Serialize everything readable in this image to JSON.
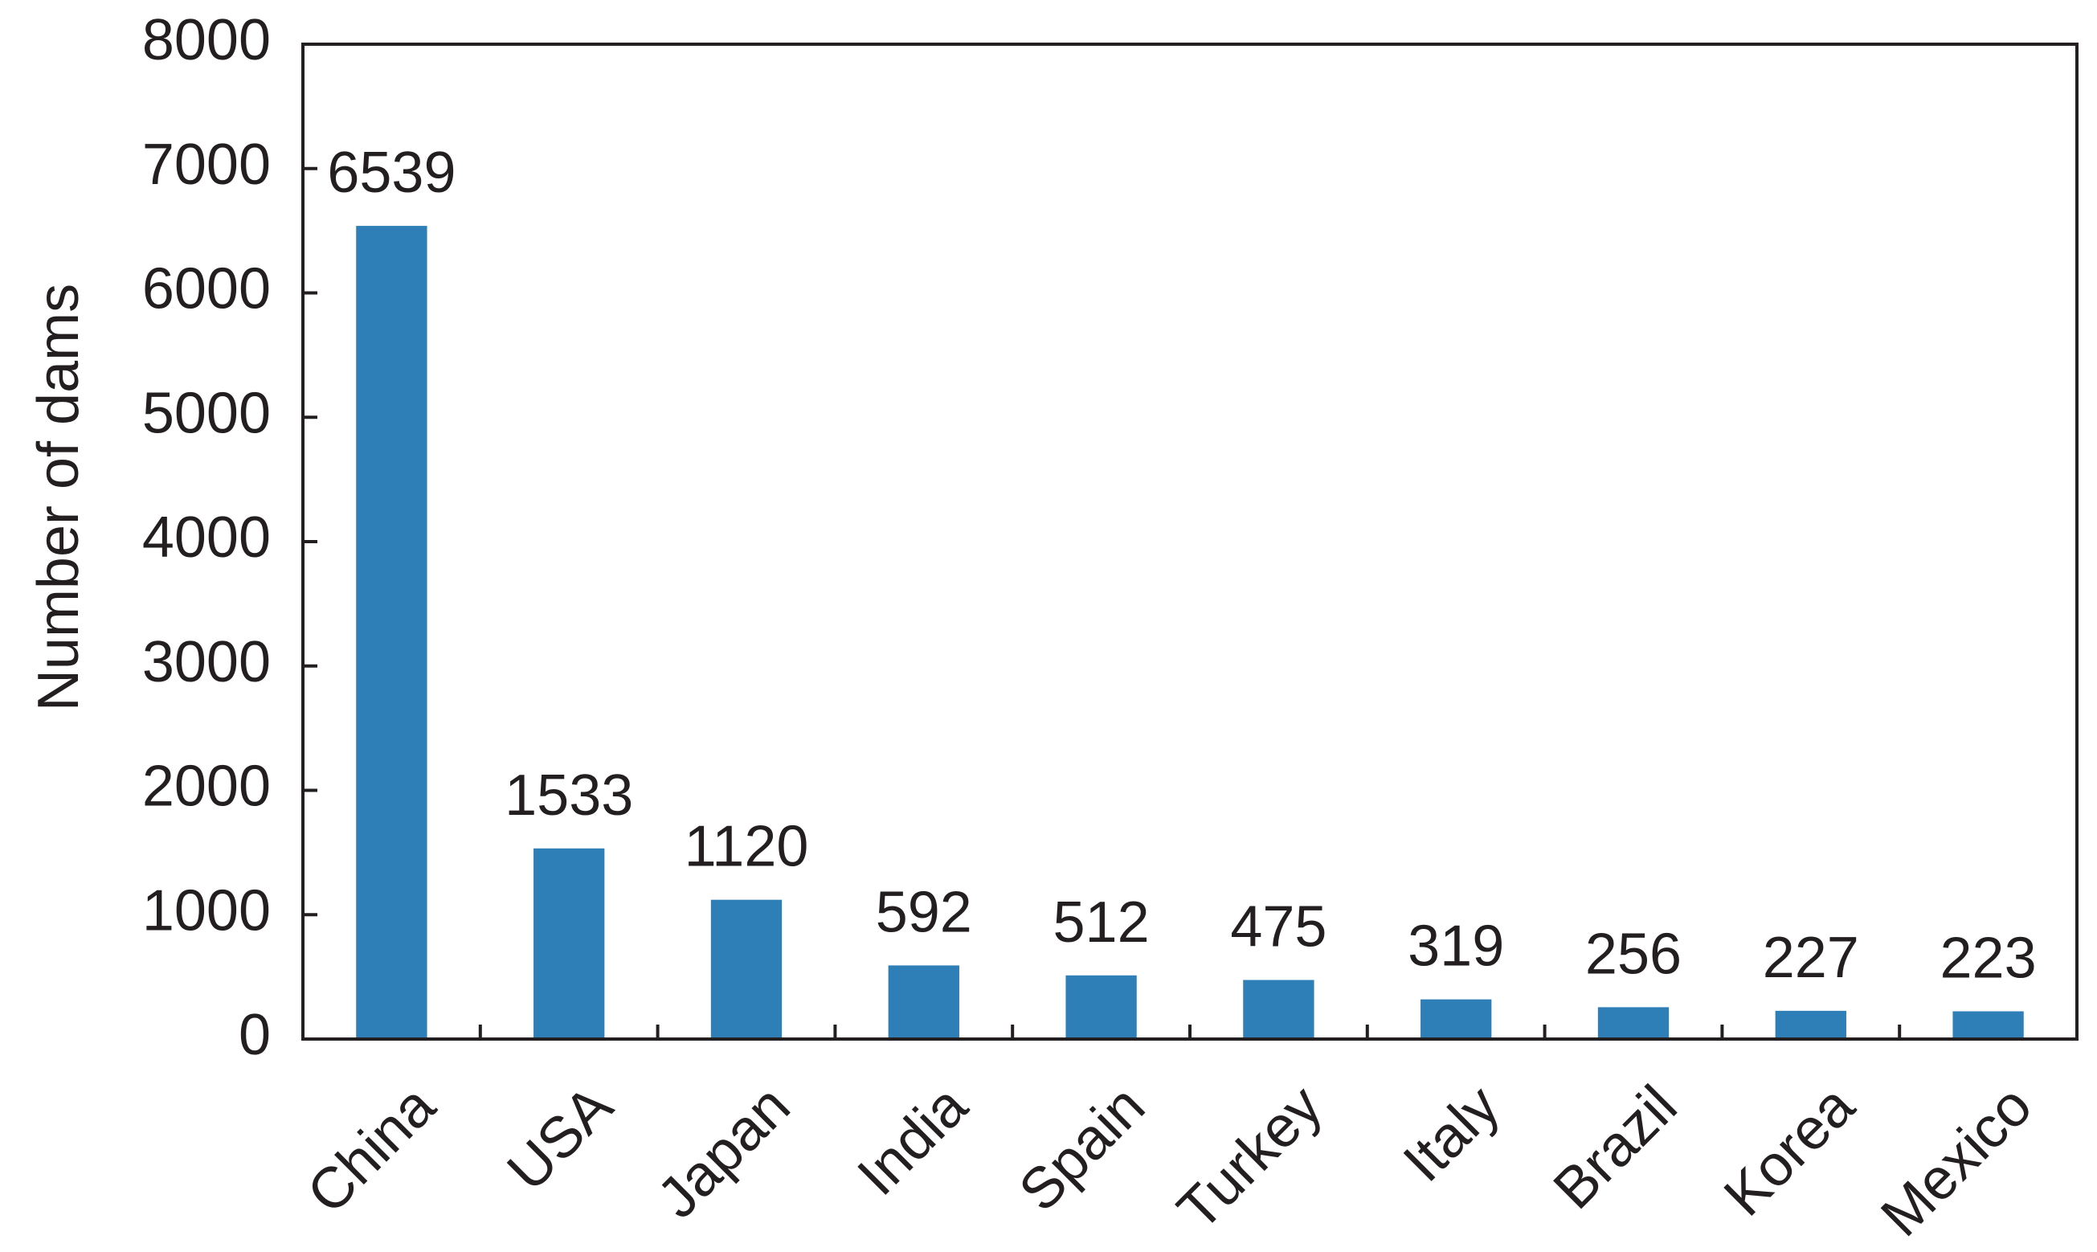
{
  "chart_data": {
    "type": "bar",
    "categories": [
      "China",
      "USA",
      "Japan",
      "India",
      "Spain",
      "Turkey",
      "Italy",
      "Brazil",
      "Korea",
      "Mexico"
    ],
    "values": [
      6539,
      1533,
      1120,
      592,
      512,
      475,
      319,
      256,
      227,
      223
    ],
    "data_labels": [
      "6539",
      "1533",
      "1120",
      "592",
      "512",
      "475",
      "319",
      "256",
      "227",
      "223"
    ],
    "title": "",
    "xlabel": "",
    "ylabel": "Number of dams",
    "ylim": [
      0,
      8000
    ],
    "yticks": [
      0,
      1000,
      2000,
      3000,
      4000,
      5000,
      6000,
      7000,
      8000
    ],
    "ytick_labels": [
      "0",
      "1000",
      "2000",
      "3000",
      "4000",
      "5000",
      "6000",
      "7000",
      "8000"
    ],
    "grid": false,
    "legend": "none",
    "bar_color": "#2e7fb8",
    "text_color": "#231f20"
  }
}
